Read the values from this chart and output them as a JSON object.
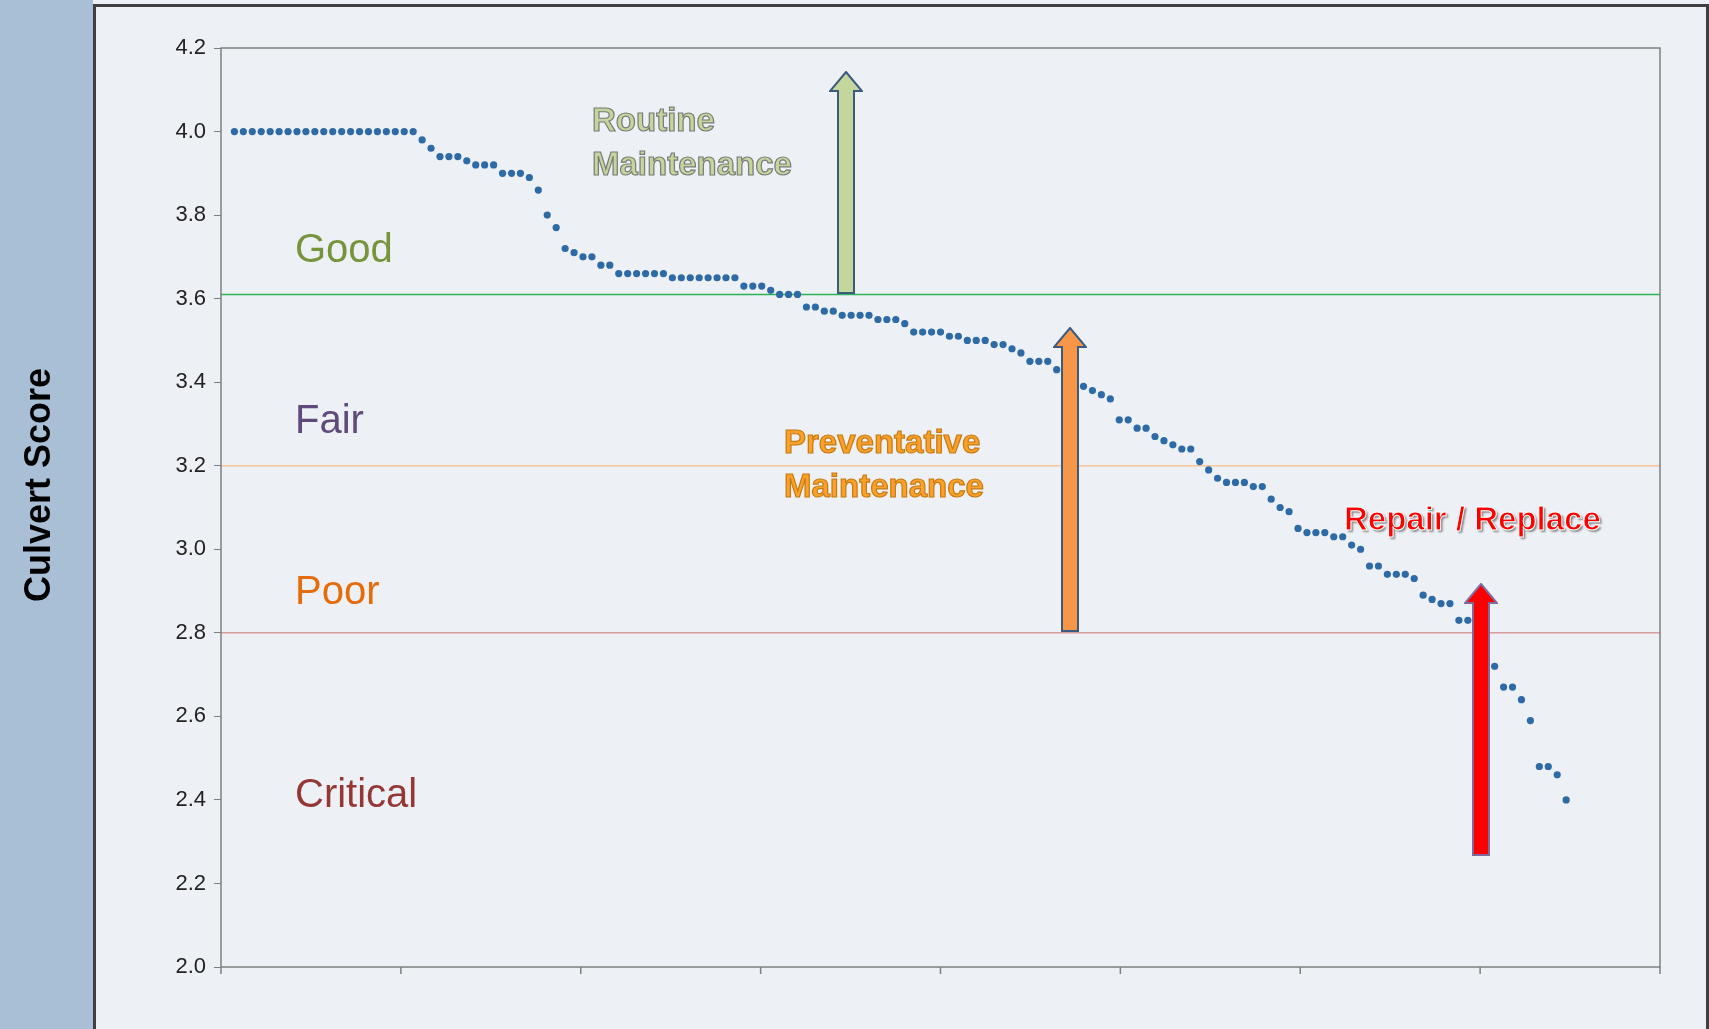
{
  "chart_data": {
    "type": "scatter",
    "ylabel": "Culvert Score",
    "categories": [
      null,
      null,
      null,
      null,
      null,
      null,
      null,
      null,
      null,
      null,
      null,
      null,
      null,
      null,
      null,
      null,
      null,
      null,
      null,
      null,
      null,
      null,
      null,
      null,
      null,
      null,
      null,
      null,
      null,
      null,
      null,
      null,
      null,
      null,
      null,
      null,
      null,
      null,
      null,
      null,
      null,
      null,
      null,
      null,
      null,
      null,
      null,
      null,
      null,
      null,
      null,
      null,
      null,
      null,
      null,
      null,
      null,
      null,
      null,
      null,
      null,
      null,
      null,
      null,
      null,
      null,
      null,
      null,
      null,
      null,
      null,
      null,
      null,
      null,
      null,
      null,
      null,
      null,
      null,
      null,
      null,
      null,
      null,
      null,
      null,
      null,
      null,
      null,
      null,
      null,
      null,
      null,
      null,
      null,
      null,
      null,
      null,
      null,
      null,
      null,
      null,
      null,
      null,
      null,
      null,
      null,
      null,
      null,
      null,
      null,
      null,
      null,
      null,
      null,
      null,
      null,
      null,
      null,
      null,
      null,
      null,
      null,
      null,
      null,
      null,
      null,
      null,
      null,
      null,
      null,
      null,
      null,
      null,
      null,
      null,
      null,
      null,
      null,
      null,
      null,
      null,
      null,
      null,
      null,
      null,
      null,
      null,
      null,
      null,
      null,
      null,
      null,
      null,
      null,
      null,
      null,
      null,
      null,
      null,
      null,
      null
    ],
    "series": [
      {
        "color": "#2e6aa6",
        "values": [
          null,
          4.0,
          4.0,
          4.0,
          4.0,
          4.0,
          4.0,
          4.0,
          4.0,
          4.0,
          4.0,
          4.0,
          4.0,
          4.0,
          4.0,
          4.0,
          4.0,
          4.0,
          4.0,
          4.0,
          4.0,
          4.0,
          3.98,
          3.96,
          3.94,
          3.94,
          3.94,
          3.93,
          3.92,
          3.92,
          3.92,
          3.9,
          3.9,
          3.9,
          3.89,
          3.86,
          3.8,
          3.77,
          3.72,
          3.71,
          3.7,
          3.7,
          3.68,
          3.68,
          3.66,
          3.66,
          3.66,
          3.66,
          3.66,
          3.66,
          3.65,
          3.65,
          3.65,
          3.65,
          3.65,
          3.65,
          3.65,
          3.65,
          3.63,
          3.63,
          3.63,
          3.62,
          3.61,
          3.61,
          3.61,
          3.58,
          3.58,
          3.57,
          3.57,
          3.56,
          3.56,
          3.56,
          3.56,
          3.55,
          3.55,
          3.55,
          3.54,
          3.52,
          3.52,
          3.52,
          3.52,
          3.51,
          3.51,
          3.5,
          3.5,
          3.5,
          3.49,
          3.49,
          3.48,
          3.47,
          3.45,
          3.45,
          3.45,
          3.43,
          null,
          null,
          3.39,
          3.38,
          3.37,
          3.36,
          3.31,
          3.31,
          3.29,
          3.29,
          3.27,
          3.26,
          3.25,
          3.24,
          3.24,
          3.21,
          3.19,
          3.17,
          3.16,
          3.16,
          3.16,
          3.15,
          3.15,
          3.12,
          3.1,
          3.09,
          3.05,
          3.04,
          3.04,
          3.04,
          3.03,
          3.03,
          3.01,
          3.0,
          2.96,
          2.96,
          2.94,
          2.94,
          2.94,
          2.93,
          2.89,
          2.88,
          2.87,
          2.87,
          2.83,
          2.83,
          null,
          null,
          2.72,
          2.67,
          2.67,
          2.64,
          2.59,
          2.48,
          2.48,
          2.46,
          2.4,
          null,
          null,
          null,
          null,
          null,
          null,
          null,
          null,
          null,
          null
        ]
      }
    ],
    "ylim": [
      2.0,
      4.2
    ],
    "yticks": [
      {
        "value": 2,
        "label": "2.0"
      },
      2.2,
      2.4,
      2.6,
      2.8,
      {
        "value": 3,
        "label": "3.0"
      },
      3.2,
      3.4,
      3.6,
      3.8,
      {
        "value": 4,
        "label": "4.0"
      },
      4.2
    ],
    "ref_lines": [
      {
        "axis": "y",
        "value": 3.61,
        "color": "#2bb358"
      },
      {
        "axis": "y",
        "value": 3.2,
        "color": "#f8c49a"
      },
      {
        "axis": "y",
        "value": 2.8,
        "color": "#d89a9a"
      }
    ],
    "annotations": [
      "Good",
      "Fair",
      "Poor",
      "Critical",
      "Routine Maintenance",
      "Preventative Maintenance",
      "Repair / Replace"
    ],
    "marker": "circle",
    "grid": false,
    "legend": false,
    "tick_labels": "y"
  }
}
